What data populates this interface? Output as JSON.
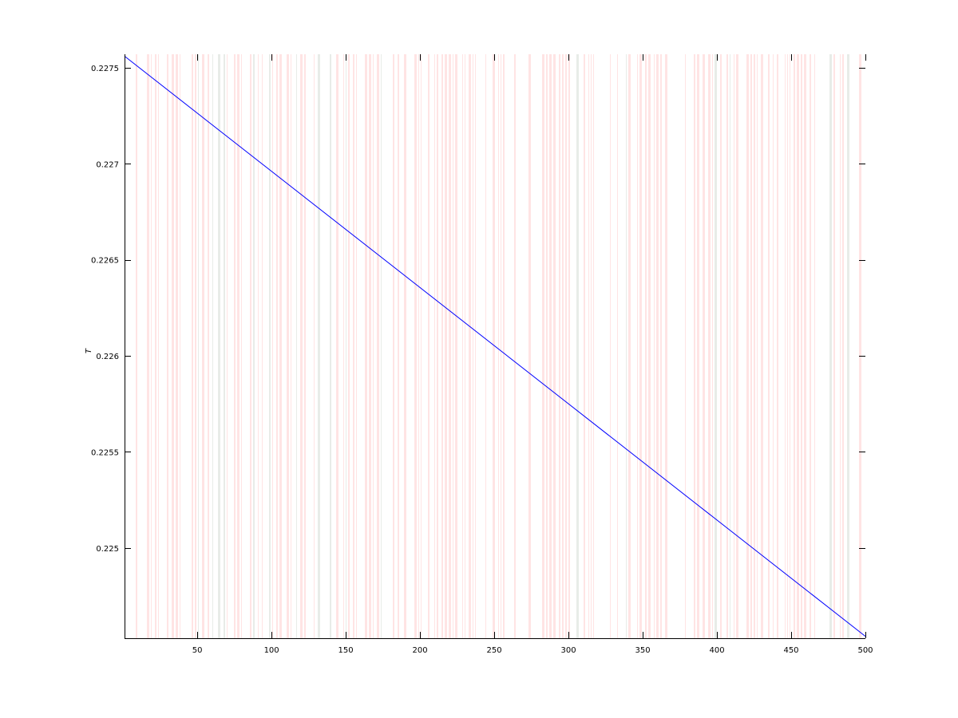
{
  "chart_data": {
    "type": "line",
    "title": "",
    "xlabel": "",
    "ylabel": "T",
    "xlim": [
      1,
      500
    ],
    "ylim": [
      0.22453,
      0.22757
    ],
    "xticks": [
      50,
      100,
      150,
      200,
      250,
      300,
      350,
      400,
      450,
      500
    ],
    "xtick_labels": [
      "50",
      "100",
      "150",
      "200",
      "250",
      "300",
      "350",
      "400",
      "450",
      "500"
    ],
    "yticks": [
      0.225,
      0.2255,
      0.226,
      0.2265,
      0.227,
      0.2275
    ],
    "ytick_labels": [
      "0.225",
      "0.2255",
      "0.226",
      "0.2265",
      "0.227",
      "0.2275"
    ],
    "grid": false,
    "series": [
      {
        "x": [
          1,
          500
        ],
        "y": [
          0.22756,
          0.22454
        ],
        "color": "#0000ff"
      }
    ],
    "background_bands": {
      "orientation": "vertical",
      "colors": [
        "#ffe4e4",
        "#e8ece8"
      ],
      "pattern_seed": 7
    }
  }
}
